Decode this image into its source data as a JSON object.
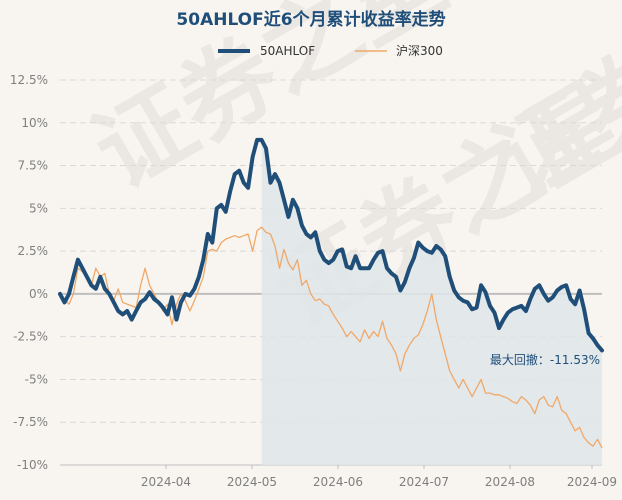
{
  "chart_data": {
    "type": "line",
    "title": "50AHLOF近6个月累计收益率走势",
    "ylim": [
      -10,
      12.5
    ],
    "y_ticks": [
      "12.5%",
      "10%",
      "7.5%",
      "5%",
      "2.5%",
      "0%",
      "-2.5%",
      "-5%",
      "-7.5%",
      "-10%"
    ],
    "x_ticks": [
      "2024-04",
      "2024-05",
      "2024-06",
      "2024-07",
      "2024-08",
      "2024-09"
    ],
    "grid": "horizontal dashed",
    "legend_position": "top-center",
    "series": [
      {
        "name": "50AHLOF",
        "color": "#1f4e79",
        "values": [
          0,
          -0.5,
          0,
          1,
          2,
          1.5,
          1,
          0.5,
          0.3,
          1,
          0.3,
          0,
          -0.5,
          -1,
          -1.2,
          -1,
          -1.5,
          -1,
          -0.5,
          -0.3,
          0.1,
          -0.3,
          -0.5,
          -0.8,
          -1.2,
          -0.2,
          -1.5,
          -0.5,
          0,
          -0.1,
          0.3,
          1,
          2,
          3.5,
          3,
          5,
          5.2,
          4.8,
          6,
          7,
          7.2,
          6.5,
          6.2,
          8,
          9,
          9,
          8.5,
          6.5,
          7,
          6.5,
          5.5,
          4.5,
          5.5,
          5,
          4,
          3.5,
          3.3,
          3.6,
          2.5,
          2,
          1.8,
          2,
          2.5,
          2.6,
          1.6,
          1.5,
          2.2,
          1.5,
          1.5,
          1.5,
          2,
          2.4,
          2.5,
          1.5,
          1.2,
          1,
          0.2,
          0.7,
          1.5,
          2.1,
          3,
          2.7,
          2.5,
          2.4,
          2.8,
          2.6,
          2.2,
          1,
          0.2,
          -0.2,
          -0.4,
          -0.5,
          -0.9,
          -0.8,
          0.5,
          0.1,
          -0.7,
          -1.1,
          -2,
          -1.5,
          -1.1,
          -0.9,
          -0.8,
          -0.7,
          -1.0,
          -0.3,
          0.3,
          0.5,
          0,
          -0.4,
          -0.2,
          0.2,
          0.4,
          0.5,
          -0.3,
          -0.6,
          0.2,
          -0.9,
          -2.3,
          -2.6,
          -3.0,
          -3.3
        ]
      },
      {
        "name": "沪深300",
        "color": "#f0a868",
        "values": [
          0,
          -0.3,
          -0.6,
          0,
          1.5,
          1.3,
          0.9,
          0.5,
          1.5,
          1,
          1.2,
          0,
          -0.4,
          0.3,
          -0.5,
          -0.6,
          -0.7,
          -0.8,
          0.5,
          1.5,
          0.5,
          0,
          -0.5,
          -1,
          -0.6,
          -1.8,
          -0.6,
          0,
          -0.4,
          -1,
          -0.4,
          0.3,
          1,
          2.5,
          2.6,
          2.5,
          3,
          3.2,
          3.3,
          3.4,
          3.3,
          3.4,
          3.5,
          2.5,
          3.7,
          3.9,
          3.6,
          3.5,
          2.8,
          1.5,
          2.6,
          1.8,
          1.4,
          2,
          0.5,
          0.8,
          0,
          -0.4,
          -0.3,
          -0.6,
          -0.7,
          -1.2,
          -1.6,
          -2,
          -2.5,
          -2.2,
          -2.5,
          -2.8,
          -2.1,
          -2.6,
          -2.2,
          -2.5,
          -1.6,
          -2.6,
          -3,
          -3.5,
          -4.5,
          -3.5,
          -3.0,
          -2.6,
          -2.4,
          -1.8,
          -1.0,
          0,
          -1.5,
          -2.5,
          -3.5,
          -4.5,
          -5.0,
          -5.5,
          -5.0,
          -5.5,
          -6.0,
          -5.5,
          -5.0,
          -5.8,
          -5.8,
          -5.9,
          -5.9,
          -6.0,
          -6.1,
          -6.3,
          -6.4,
          -6.0,
          -6.2,
          -6.5,
          -7.0,
          -6.2,
          -6.0,
          -6.5,
          -6.6,
          -6.0,
          -6.8,
          -7.0,
          -7.5,
          -8.0,
          -7.8,
          -8.4,
          -8.7,
          -8.9,
          -8.5,
          -9.0
        ]
      }
    ],
    "shade_start_index": 45,
    "annotation": "最大回撤：-11.53%"
  },
  "watermark": "证券之星"
}
